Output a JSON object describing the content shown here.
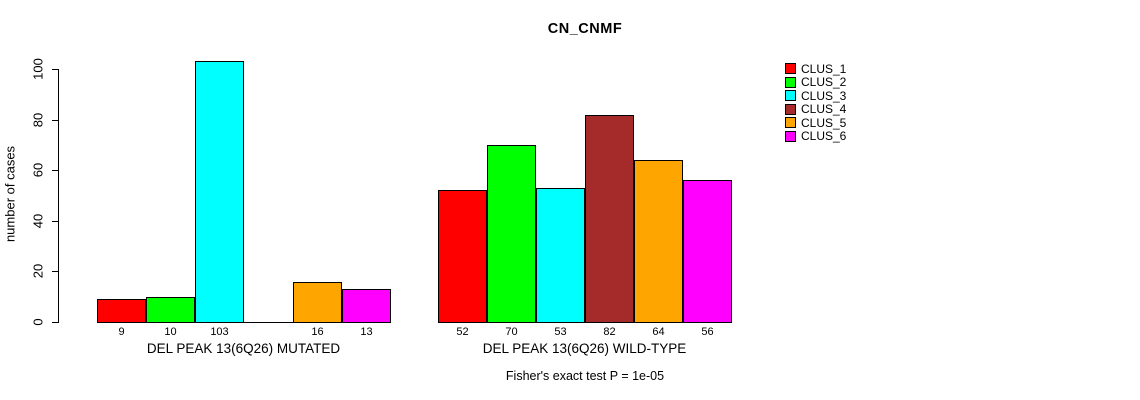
{
  "chart_data": {
    "type": "bar",
    "title": "CN_CNMF",
    "ylabel": "number of cases",
    "footer": "Fisher's exact test P = 1e-05",
    "ylim": [
      0,
      100
    ],
    "yticks": [
      0,
      20,
      40,
      60,
      80,
      100
    ],
    "grid": false,
    "legend_position": "right-outside-top",
    "legend": [
      "CLUS_1",
      "CLUS_2",
      "CLUS_3",
      "CLUS_4",
      "CLUS_5",
      "CLUS_6"
    ],
    "colors": [
      "#FF0000",
      "#00FF00",
      "#00FFFF",
      "#A52A2A",
      "#FFA500",
      "#FF00FF"
    ],
    "background_color": "#FFFFFF",
    "axis_color": "#000000",
    "groups": [
      {
        "label": "DEL PEAK 13(6Q26) MUTATED",
        "values": [
          9,
          10,
          103,
          0,
          16,
          13
        ],
        "bar_labels": [
          "9",
          "10",
          "103",
          "",
          "16",
          "13"
        ]
      },
      {
        "label": "DEL PEAK 13(6Q26) WILD-TYPE",
        "values": [
          52,
          70,
          53,
          82,
          64,
          56
        ],
        "bar_labels": [
          "52",
          "70",
          "53",
          "82",
          "64",
          "56"
        ]
      }
    ]
  }
}
